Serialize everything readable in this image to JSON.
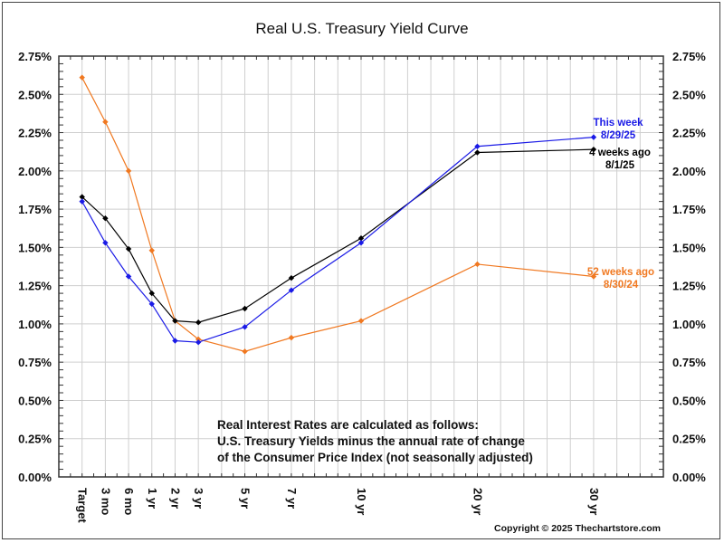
{
  "chart_data": {
    "type": "line",
    "title": "Real U.S. Treasury Yield Curve",
    "xlabel": "",
    "ylabel": "",
    "ylim": [
      0,
      2.75
    ],
    "yticks": [
      "0.00%",
      "0.25%",
      "0.50%",
      "0.75%",
      "1.00%",
      "1.25%",
      "1.50%",
      "1.75%",
      "2.00%",
      "2.25%",
      "2.50%",
      "2.75%"
    ],
    "ytick_values": [
      0,
      0.25,
      0.5,
      0.75,
      1.0,
      1.25,
      1.5,
      1.75,
      2.0,
      2.25,
      2.5,
      2.75
    ],
    "categories": [
      "Target",
      "3 mo",
      "6 mo",
      "1 yr",
      "2 yr",
      "3 yr",
      "5 yr",
      "7 yr",
      "10 yr",
      "20 yr",
      "30 yr"
    ],
    "category_scale_positions": [
      1,
      2,
      3,
      4,
      5,
      6,
      8,
      10,
      13,
      18,
      23
    ],
    "x_scale_max": 26,
    "grid": true,
    "series": [
      {
        "name": "This week",
        "date": "8/29/25",
        "color": "#1a1ae6",
        "values": [
          1.8,
          1.53,
          1.31,
          1.13,
          0.89,
          0.88,
          0.98,
          1.22,
          1.53,
          2.16,
          2.22
        ]
      },
      {
        "name": "4 weeks ago",
        "date": "8/1/25",
        "color": "#000000",
        "values": [
          1.83,
          1.69,
          1.49,
          1.2,
          1.02,
          1.01,
          1.1,
          1.3,
          1.56,
          2.12,
          2.14
        ]
      },
      {
        "name": "52 weeks ago",
        "date": "8/30/24",
        "color": "#f07820",
        "values": [
          2.61,
          2.32,
          2.0,
          1.48,
          1.02,
          0.9,
          0.82,
          0.91,
          1.02,
          1.39,
          1.31
        ]
      }
    ],
    "annotation_lines": [
      "Real Interest Rates are calculated as follows:",
      "U.S. Treasury Yields minus the annual rate of change",
      "of the Consumer Price Index (not seasonally adjusted)"
    ],
    "legend_placement": "right",
    "copyright": "Copyright © 2025 Thechartstore.com"
  }
}
